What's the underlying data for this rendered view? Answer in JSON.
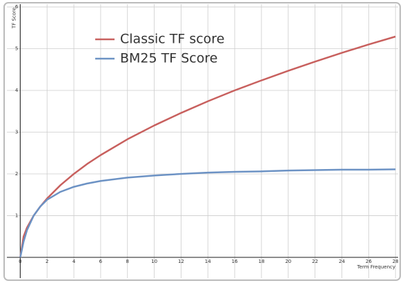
{
  "chart_data": {
    "type": "line",
    "x_label": "Term Frequency",
    "y_label": "TF Score",
    "x": [
      0,
      0.25,
      0.5,
      1,
      1.5,
      2,
      3,
      4,
      5,
      6,
      8,
      10,
      12,
      14,
      16,
      18,
      20,
      22,
      24,
      26,
      28
    ],
    "series": [
      {
        "name": "Classic TF score",
        "color": "#c8605e",
        "values": [
          0,
          0.5,
          0.71,
          1,
          1.22,
          1.41,
          1.73,
          2,
          2.24,
          2.45,
          2.83,
          3.16,
          3.46,
          3.74,
          4,
          4.24,
          4.47,
          4.69,
          4.9,
          5.1,
          5.29
        ]
      },
      {
        "name": "BM25 TF Score",
        "color": "#6c92c4",
        "values": [
          0,
          0.38,
          0.65,
          1,
          1.22,
          1.38,
          1.57,
          1.69,
          1.77,
          1.83,
          1.91,
          1.96,
          2,
          2.03,
          2.05,
          2.06,
          2.08,
          2.09,
          2.1,
          2.1,
          2.11
        ]
      }
    ],
    "xlim": [
      -1.1,
      28.3
    ],
    "ylim": [
      -0.53,
      6.1
    ],
    "xticks": [
      0,
      2,
      4,
      6,
      8,
      10,
      12,
      14,
      16,
      18,
      20,
      22,
      24,
      26,
      28
    ],
    "yticks": [
      1,
      2,
      3,
      4,
      5,
      6
    ],
    "grid": true,
    "legend": "top-left"
  }
}
